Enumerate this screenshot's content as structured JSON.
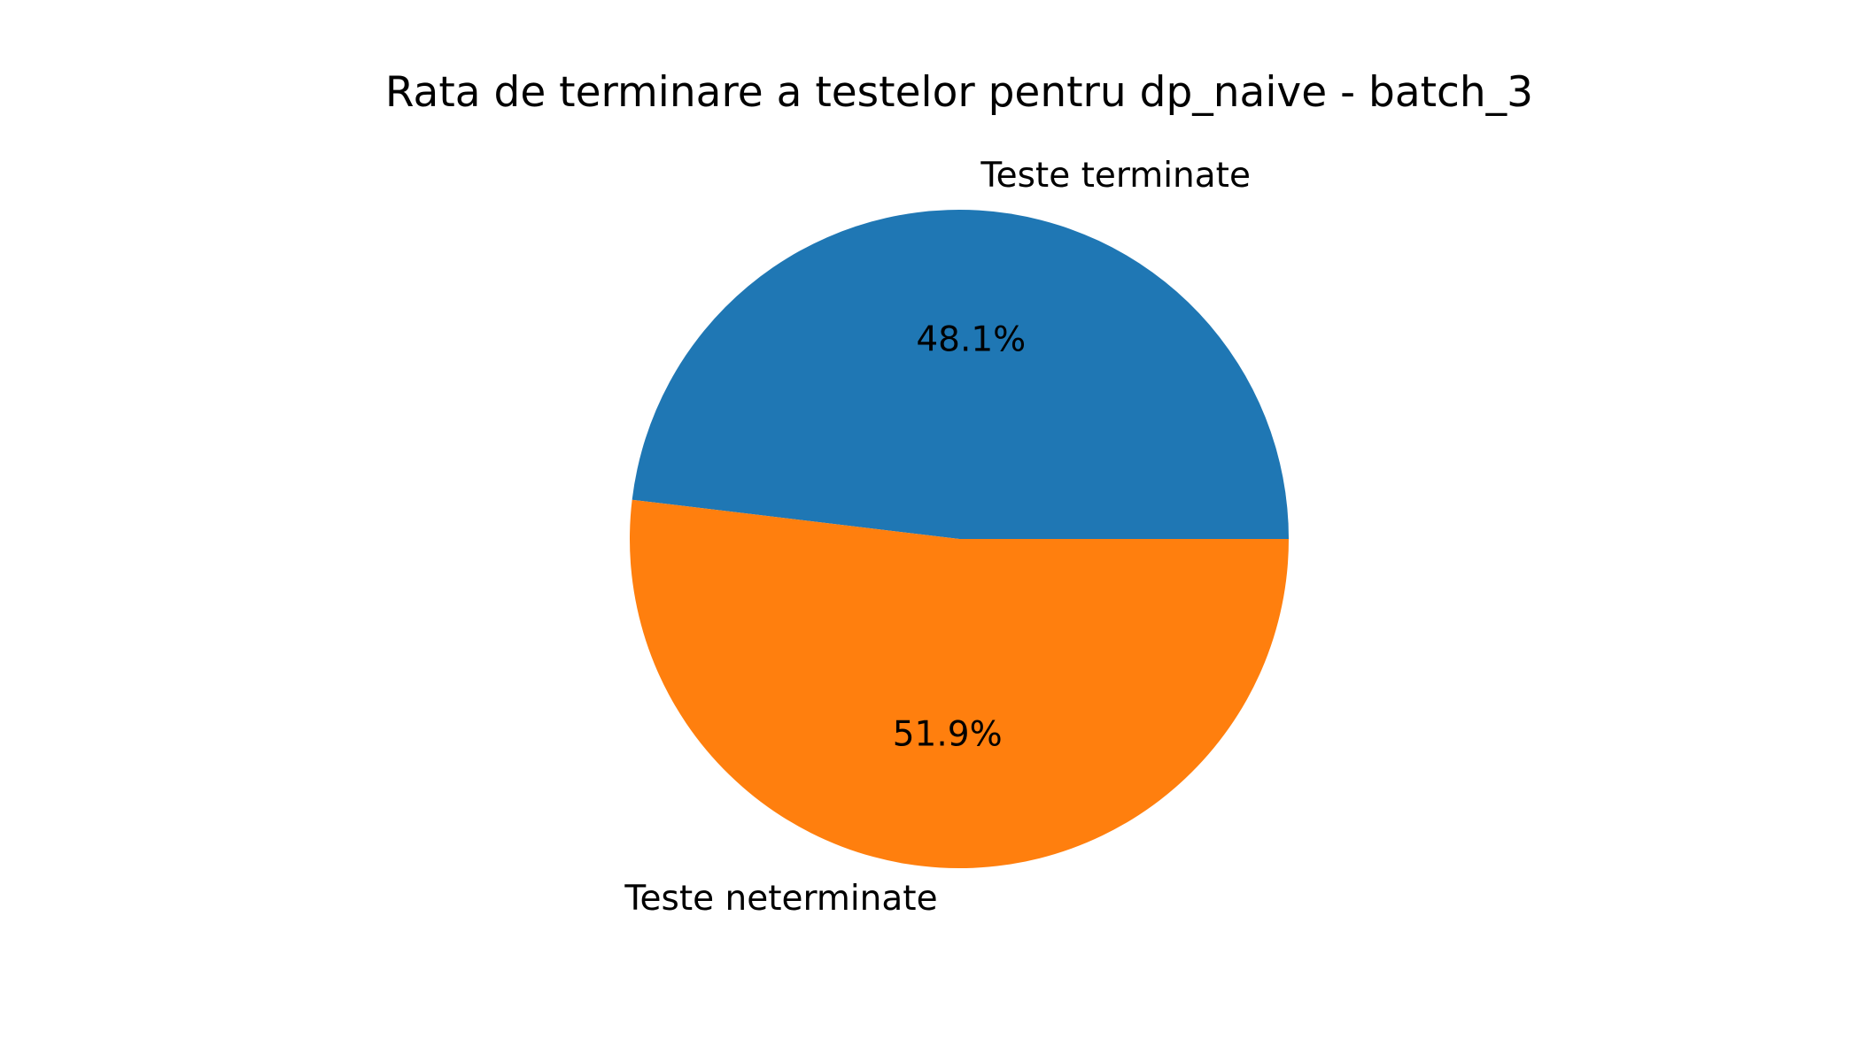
{
  "chart_data": {
    "type": "pie",
    "title": "Rata de terminare a testelor pentru dp_naive - batch_3",
    "slices": [
      {
        "label": "Teste terminate",
        "value": 48.1,
        "pct_label": "48.1%",
        "color": "#1f77b4"
      },
      {
        "label": "Teste neterminate",
        "value": 51.9,
        "pct_label": "51.9%",
        "color": "#ff7f0e"
      }
    ],
    "start_angle_deg": 0,
    "direction": "counterclockwise",
    "legend": "none"
  }
}
